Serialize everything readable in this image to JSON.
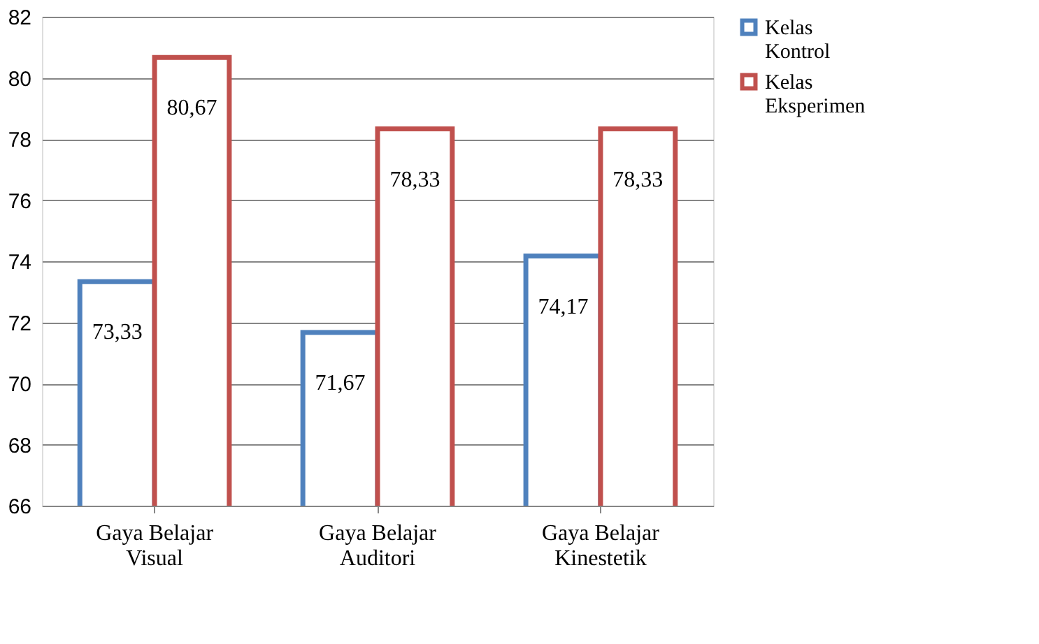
{
  "chart_data": {
    "type": "bar",
    "categories": [
      "Gaya Belajar Visual",
      "Gaya Belajar Auditori",
      "Gaya Belajar Kinestetik"
    ],
    "series": [
      {
        "name": "Kelas Kontrol",
        "color": "#4f81bd",
        "values": [
          73.33,
          71.67,
          74.17
        ],
        "value_labels": [
          "73,33",
          "71,67",
          "74,17"
        ]
      },
      {
        "name": "Kelas Eksperimen",
        "color": "#c0504d",
        "values": [
          80.67,
          78.33,
          78.33
        ],
        "value_labels": [
          "80,67",
          "78,33",
          "78,33"
        ]
      }
    ],
    "ylim": [
      66,
      82
    ],
    "yticks": [
      66,
      68,
      70,
      72,
      74,
      76,
      78,
      80,
      82
    ],
    "grid": "y",
    "legend": "right"
  }
}
